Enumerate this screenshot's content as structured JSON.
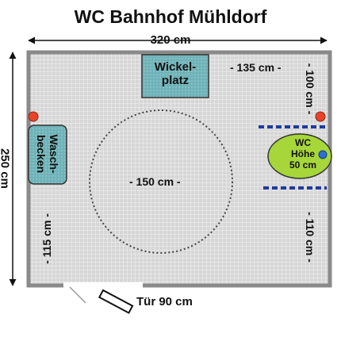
{
  "title": "WC Bahnhof Mühldorf",
  "dimensions": {
    "width": "320 cm",
    "height": "250 cm",
    "to_changing_table": "- 135 cm -",
    "wc_top_gap": "- 100 cm -",
    "wc_bottom_gap": "- 110 cm -",
    "sink_gap": "- 115 cm -",
    "turning_circle": "- 150 cm -"
  },
  "fixtures": {
    "changing_table": {
      "line1": "Wickel-",
      "line2": "platz"
    },
    "sink": {
      "line1": "Wasch-",
      "line2": "becken"
    },
    "toilet": {
      "line1": "WC",
      "line2": "Höhe",
      "line3": "50 cm"
    }
  },
  "door": {
    "label": "Tür 90 cm"
  },
  "colors": {
    "floor_grid": "#d9d9d9",
    "wall": "#808080",
    "fixture_teal": "#6fb3b8",
    "toilet_green": "#a6d63a",
    "grab_bar_blue": "#1f3a9e",
    "marker_red": "#e8432a"
  }
}
